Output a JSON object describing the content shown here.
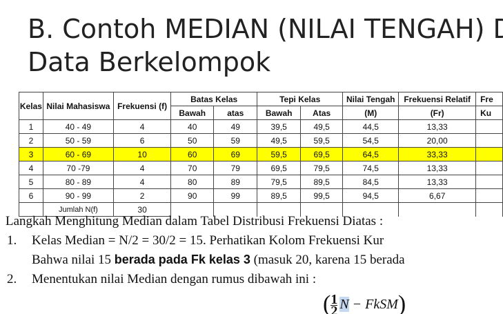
{
  "title": {
    "line1": "B. Contoh MEDIAN (NILAI TENGAH) D",
    "line2": "Data Berkelompok"
  },
  "table": {
    "header": {
      "kelas": "Kelas",
      "nilai": "Nilai Mahasiswa",
      "frekuensi": "Frekuensi (f)",
      "batas": "Batas Kelas",
      "batas_bawah": "Bawah",
      "batas_atas": "atas",
      "tepi": "Tepi Kelas",
      "tepi_bawah": "Bawah",
      "tepi_atas": "Atas",
      "tengah": "Nilai Tengah",
      "tengah_sub": "(M)",
      "relatif": "Frekuensi Relatif",
      "relatif_sub": "(Fr)",
      "kumulatif": "Fre",
      "kumulatif_sub": "Ku"
    },
    "rows": [
      [
        "1",
        "40 - 49",
        "4",
        "40",
        "49",
        "39,5",
        "49,5",
        "44,5",
        "13,33"
      ],
      [
        "2",
        "50 - 59",
        "6",
        "50",
        "59",
        "49,5",
        "59,5",
        "54,5",
        "20,00"
      ],
      [
        "3",
        "60 - 69",
        "10",
        "60",
        "69",
        "59,5",
        "69,5",
        "64,5",
        "33,33"
      ],
      [
        "4",
        "70 -79",
        "4",
        "70",
        "79",
        "69,5",
        "79,5",
        "74,5",
        "13,33"
      ],
      [
        "5",
        "80 - 89",
        "4",
        "80",
        "89",
        "79,5",
        "89,5",
        "84,5",
        "13,33"
      ],
      [
        "6",
        "90 - 99",
        "2",
        "90",
        "99",
        "89,5",
        "99,5",
        "94,5",
        "6,67"
      ]
    ],
    "highlight_row": 2,
    "highlight_color": "#ffff00",
    "footer": {
      "label": "Jumlah N(f)",
      "total": "30"
    }
  },
  "text": {
    "intro": "Langkah Menghitung Median dalam Tabel Distribusi Frekuensi Diatas :",
    "step1_num": "1.",
    "step1": "Kelas Median = N/2 = 30/2 = 15. Perhatikan Kolom Frekuensi Kur",
    "step1_cont_a": "Bahwa nilai 15 ",
    "step1_cont_bold": "berada pada Fk kelas 3",
    "step1_cont_b": " (masuk 20, karena 15 berada",
    "step2_num": "2.",
    "step2": "Menentukan nilai Median dengan rumus dibawah ini :",
    "formula": {
      "num": "1",
      "den": "2",
      "n": "N",
      "rest": "− FkSM"
    }
  }
}
